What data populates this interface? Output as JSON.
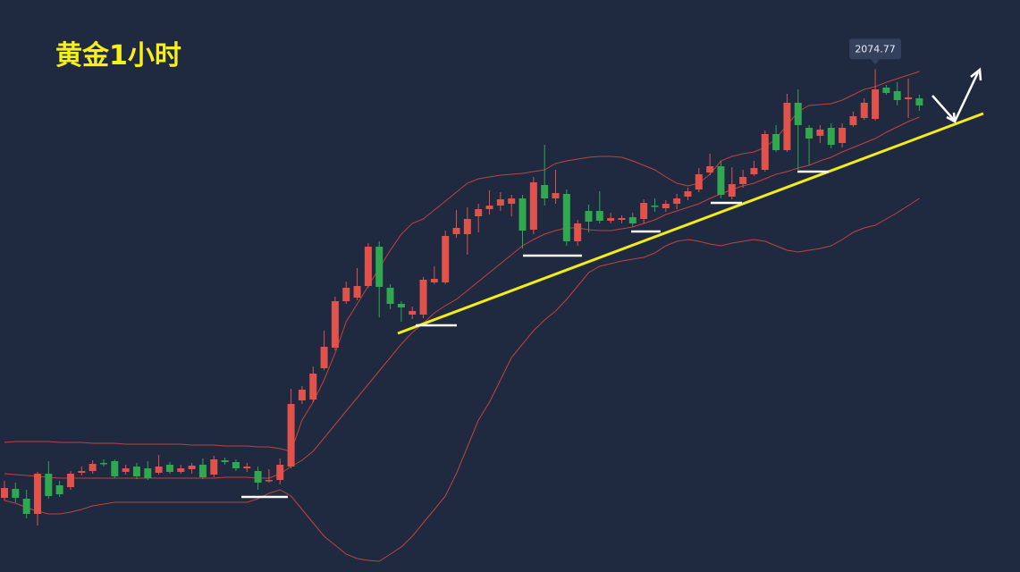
{
  "chart_data": {
    "type": "candlestick",
    "title": "黄金1小时",
    "ylim": [
      2018.5,
      2082.5
    ],
    "up_color": "#e0524a",
    "down_color": "#2fa84f",
    "band_color": "#c0443c",
    "open": [
      2026.8,
      2027.8,
      2026.7,
      2025.0,
      2029.5,
      2028.2,
      2028.0,
      2029.6,
      2029.8,
      2030.7,
      2030.9,
      2029.7,
      2030.3,
      2030.1,
      2029.6,
      2030.5,
      2029.7,
      2030.0,
      2030.5,
      2029.4,
      2031.0,
      2030.8,
      2030.1,
      2029.8,
      2028.7,
      2028.8,
      2030.3,
      2037.7,
      2037.8,
      2041.3,
      2043.6,
      2048.8,
      2049.2,
      2050.5,
      2054.9,
      2050.3,
      2048.5,
      2047.3,
      2047.3,
      2050.9,
      2050.9,
      2056.3,
      2056.3,
      2058.3,
      2059.1,
      2059.5,
      2059.7,
      2060.3,
      2056.8,
      2061.8,
      2060.3,
      2060.8,
      2055.5,
      2058.9,
      2058.9,
      2057.8,
      2057.9,
      2058.2,
      2058.0,
      2059.5,
      2059.2,
      2059.7,
      2060.5,
      2061.3,
      2063.2,
      2063.9,
      2060.5,
      2061.9,
      2063.0,
      2063.5,
      2067.5,
      2065.7,
      2071.0,
      2068.2,
      2067.3,
      2068.2,
      2066.5,
      2068.5,
      2069.3,
      2069.2,
      2072.7,
      2072.3,
      2071.4,
      2071.5
    ],
    "high": [
      2028.7,
      2028.5,
      2027.7,
      2029.7,
      2030.9,
      2028.7,
      2029.8,
      2030.3,
      2031.0,
      2031.1,
      2031.1,
      2030.5,
      2030.7,
      2030.9,
      2031.6,
      2030.8,
      2030.5,
      2030.7,
      2031.2,
      2031.5,
      2031.3,
      2031.1,
      2030.7,
      2030.3,
      2030.0,
      2031.2,
      2039.0,
      2039.3,
      2041.5,
      2045.5,
      2049.3,
      2051.0,
      2052.5,
      2055.3,
      2055.5,
      2050.7,
      2048.8,
      2048.2,
      2051.5,
      2052.7,
      2056.7,
      2059.0,
      2059.3,
      2059.7,
      2061.2,
      2061.0,
      2060.7,
      2060.7,
      2062.7,
      2066.3,
      2063.5,
      2061.3,
      2057.9,
      2059.6,
      2061.1,
      2058.7,
      2058.4,
      2058.7,
      2060.2,
      2060.3,
      2060.1,
      2060.8,
      2061.5,
      2063.7,
      2065.3,
      2064.5,
      2063.8,
      2063.5,
      2064.5,
      2067.9,
      2068.5,
      2072.0,
      2072.5,
      2068.5,
      2068.5,
      2068.7,
      2068.7,
      2070.0,
      2071.5,
      2074.77,
      2073.0,
      2073.3,
      2073.7,
      2071.9
    ],
    "low": [
      2026.5,
      2026.3,
      2024.5,
      2023.7,
      2026.7,
      2026.9,
      2027.7,
      2029.3,
      2029.5,
      2030.3,
      2029.0,
      2029.4,
      2028.9,
      2028.8,
      2029.4,
      2029.5,
      2029.5,
      2029.5,
      2028.9,
      2029.1,
      2030.5,
      2029.8,
      2029.7,
      2027.7,
      2028.5,
      2028.3,
      2030.1,
      2037.3,
      2037.5,
      2041.1,
      2043.3,
      2048.5,
      2048.9,
      2050.3,
      2047.0,
      2047.9,
      2046.5,
      2046.8,
      2046.9,
      2050.7,
      2050.7,
      2055.9,
      2054.0,
      2056.5,
      2058.5,
      2058.9,
      2058.3,
      2054.7,
      2056.3,
      2059.5,
      2059.7,
      2055.0,
      2055.0,
      2056.5,
      2057.5,
      2057.5,
      2057.5,
      2057.1,
      2057.5,
      2058.8,
      2058.8,
      2059.1,
      2060.1,
      2061.0,
      2062.9,
      2060.3,
      2060.2,
      2061.5,
      2062.8,
      2063.3,
      2065.5,
      2065.5,
      2063.5,
      2064.0,
      2066.5,
      2065.9,
      2066.0,
      2068.3,
      2069.1,
      2069.0,
      2071.9,
      2070.7,
      2069.3,
      2070.1
    ],
    "close": [
      2027.9,
      2026.8,
      2025.0,
      2029.5,
      2027.0,
      2027.2,
      2029.5,
      2029.8,
      2030.6,
      2030.6,
      2029.2,
      2030.1,
      2029.2,
      2029.0,
      2030.3,
      2029.7,
      2030.1,
      2030.4,
      2029.1,
      2031.1,
      2030.8,
      2030.1,
      2030.3,
      2028.5,
      2028.8,
      2030.5,
      2037.3,
      2038.9,
      2040.7,
      2043.7,
      2048.8,
      2050.3,
      2050.5,
      2054.9,
      2050.4,
      2048.5,
      2048.1,
      2047.7,
      2051.2,
      2051.3,
      2056.1,
      2057.0,
      2058.0,
      2059.1,
      2059.5,
      2060.2,
      2060.3,
      2056.7,
      2062.1,
      2060.3,
      2060.9,
      2055.5,
      2057.5,
      2057.7,
      2057.8,
      2058.1,
      2058.1,
      2057.5,
      2059.8,
      2059.4,
      2059.7,
      2060.3,
      2061.1,
      2063.0,
      2063.9,
      2060.7,
      2061.9,
      2062.7,
      2063.7,
      2067.5,
      2065.7,
      2071.0,
      2068.5,
      2067.0,
      2068.0,
      2066.3,
      2068.2,
      2069.5,
      2071.0,
      2072.5,
      2072.1,
      2071.3,
      2071.6,
      2070.7
    ],
    "upper": [
      2033.0,
      2033.1,
      2033.1,
      2033.1,
      2033.1,
      2033.0,
      2033.0,
      2033.0,
      2032.9,
      2032.9,
      2032.9,
      2032.8,
      2032.8,
      2032.8,
      2032.8,
      2032.8,
      2032.8,
      2032.7,
      2032.7,
      2032.7,
      2032.6,
      2032.6,
      2032.6,
      2032.5,
      2032.5,
      2032.3,
      2032.0,
      2035.5,
      2037.5,
      2040.0,
      2043.0,
      2046.5,
      2048.5,
      2050.5,
      2052.5,
      2054.5,
      2056.3,
      2057.5,
      2058.0,
      2059.0,
      2060.0,
      2061.0,
      2062.0,
      2062.5,
      2062.7,
      2062.9,
      2063.0,
      2063.1,
      2063.3,
      2063.5,
      2064.2,
      2064.5,
      2064.7,
      2064.9,
      2065.0,
      2065.0,
      2064.9,
      2064.5,
      2064.0,
      2063.5,
      2062.7,
      2062.0,
      2061.7,
      2062.0,
      2063.0,
      2064.5,
      2065.0,
      2065.3,
      2065.5,
      2066.0,
      2067.0,
      2068.5,
      2070.0,
      2070.7,
      2070.8,
      2070.9,
      2071.3,
      2071.9,
      2072.5,
      2072.8,
      2073.3,
      2073.7,
      2074.1,
      2074.5
    ],
    "middle": [
      2029.5,
      2029.4,
      2029.3,
      2029.2,
      2029.1,
      2029.0,
      2029.0,
      2029.0,
      2029.0,
      2029.0,
      2029.0,
      2029.0,
      2029.0,
      2029.0,
      2029.0,
      2029.0,
      2029.0,
      2029.0,
      2029.0,
      2029.0,
      2029.1,
      2029.1,
      2029.1,
      2029.0,
      2029.0,
      2029.5,
      2030.3,
      2031.0,
      2032.0,
      2033.5,
      2035.0,
      2036.5,
      2038.0,
      2039.5,
      2041.0,
      2042.5,
      2044.0,
      2045.3,
      2046.3,
      2047.5,
      2048.3,
      2049.0,
      2050.0,
      2051.0,
      2052.0,
      2053.0,
      2054.0,
      2055.0,
      2055.7,
      2056.3,
      2056.7,
      2057.0,
      2057.0,
      2056.8,
      2056.7,
      2056.7,
      2056.9,
      2057.1,
      2057.5,
      2057.9,
      2058.5,
      2058.9,
      2059.3,
      2059.7,
      2060.3,
      2060.8,
      2061.3,
      2061.7,
      2062.0,
      2062.5,
      2063.0,
      2063.3,
      2063.7,
      2064.0,
      2064.5,
      2064.9,
      2065.5,
      2066.0,
      2066.5,
      2067.0,
      2067.7,
      2068.3,
      2068.9,
      2069.4
    ],
    "lower": [
      2026.5,
      2026.2,
      2025.7,
      2025.3,
      2025.0,
      2025.0,
      2025.2,
      2025.5,
      2025.9,
      2026.1,
      2026.3,
      2026.3,
      2026.3,
      2026.3,
      2026.3,
      2026.3,
      2026.3,
      2026.3,
      2026.3,
      2026.3,
      2026.3,
      2026.3,
      2026.3,
      2026.7,
      2027.3,
      2027.7,
      2027.0,
      2025.5,
      2024.0,
      2022.5,
      2021.5,
      2020.5,
      2020.0,
      2019.8,
      2019.7,
      2020.5,
      2021.3,
      2022.5,
      2024.0,
      2025.5,
      2027.0,
      2029.5,
      2032.5,
      2035.5,
      2037.5,
      2040.0,
      2042.5,
      2044.0,
      2045.5,
      2046.7,
      2047.7,
      2049.0,
      2050.5,
      2052.0,
      2052.7,
      2053.0,
      2053.3,
      2053.5,
      2053.7,
      2054.2,
      2055.0,
      2055.5,
      2055.7,
      2055.5,
      2055.2,
      2055.0,
      2055.3,
      2055.5,
      2055.7,
      2055.5,
      2055.0,
      2054.5,
      2054.3,
      2054.5,
      2054.7,
      2055.0,
      2055.7,
      2056.5,
      2057.0,
      2057.3,
      2058.0,
      2058.7,
      2059.5,
      2060.3
    ]
  }
}
